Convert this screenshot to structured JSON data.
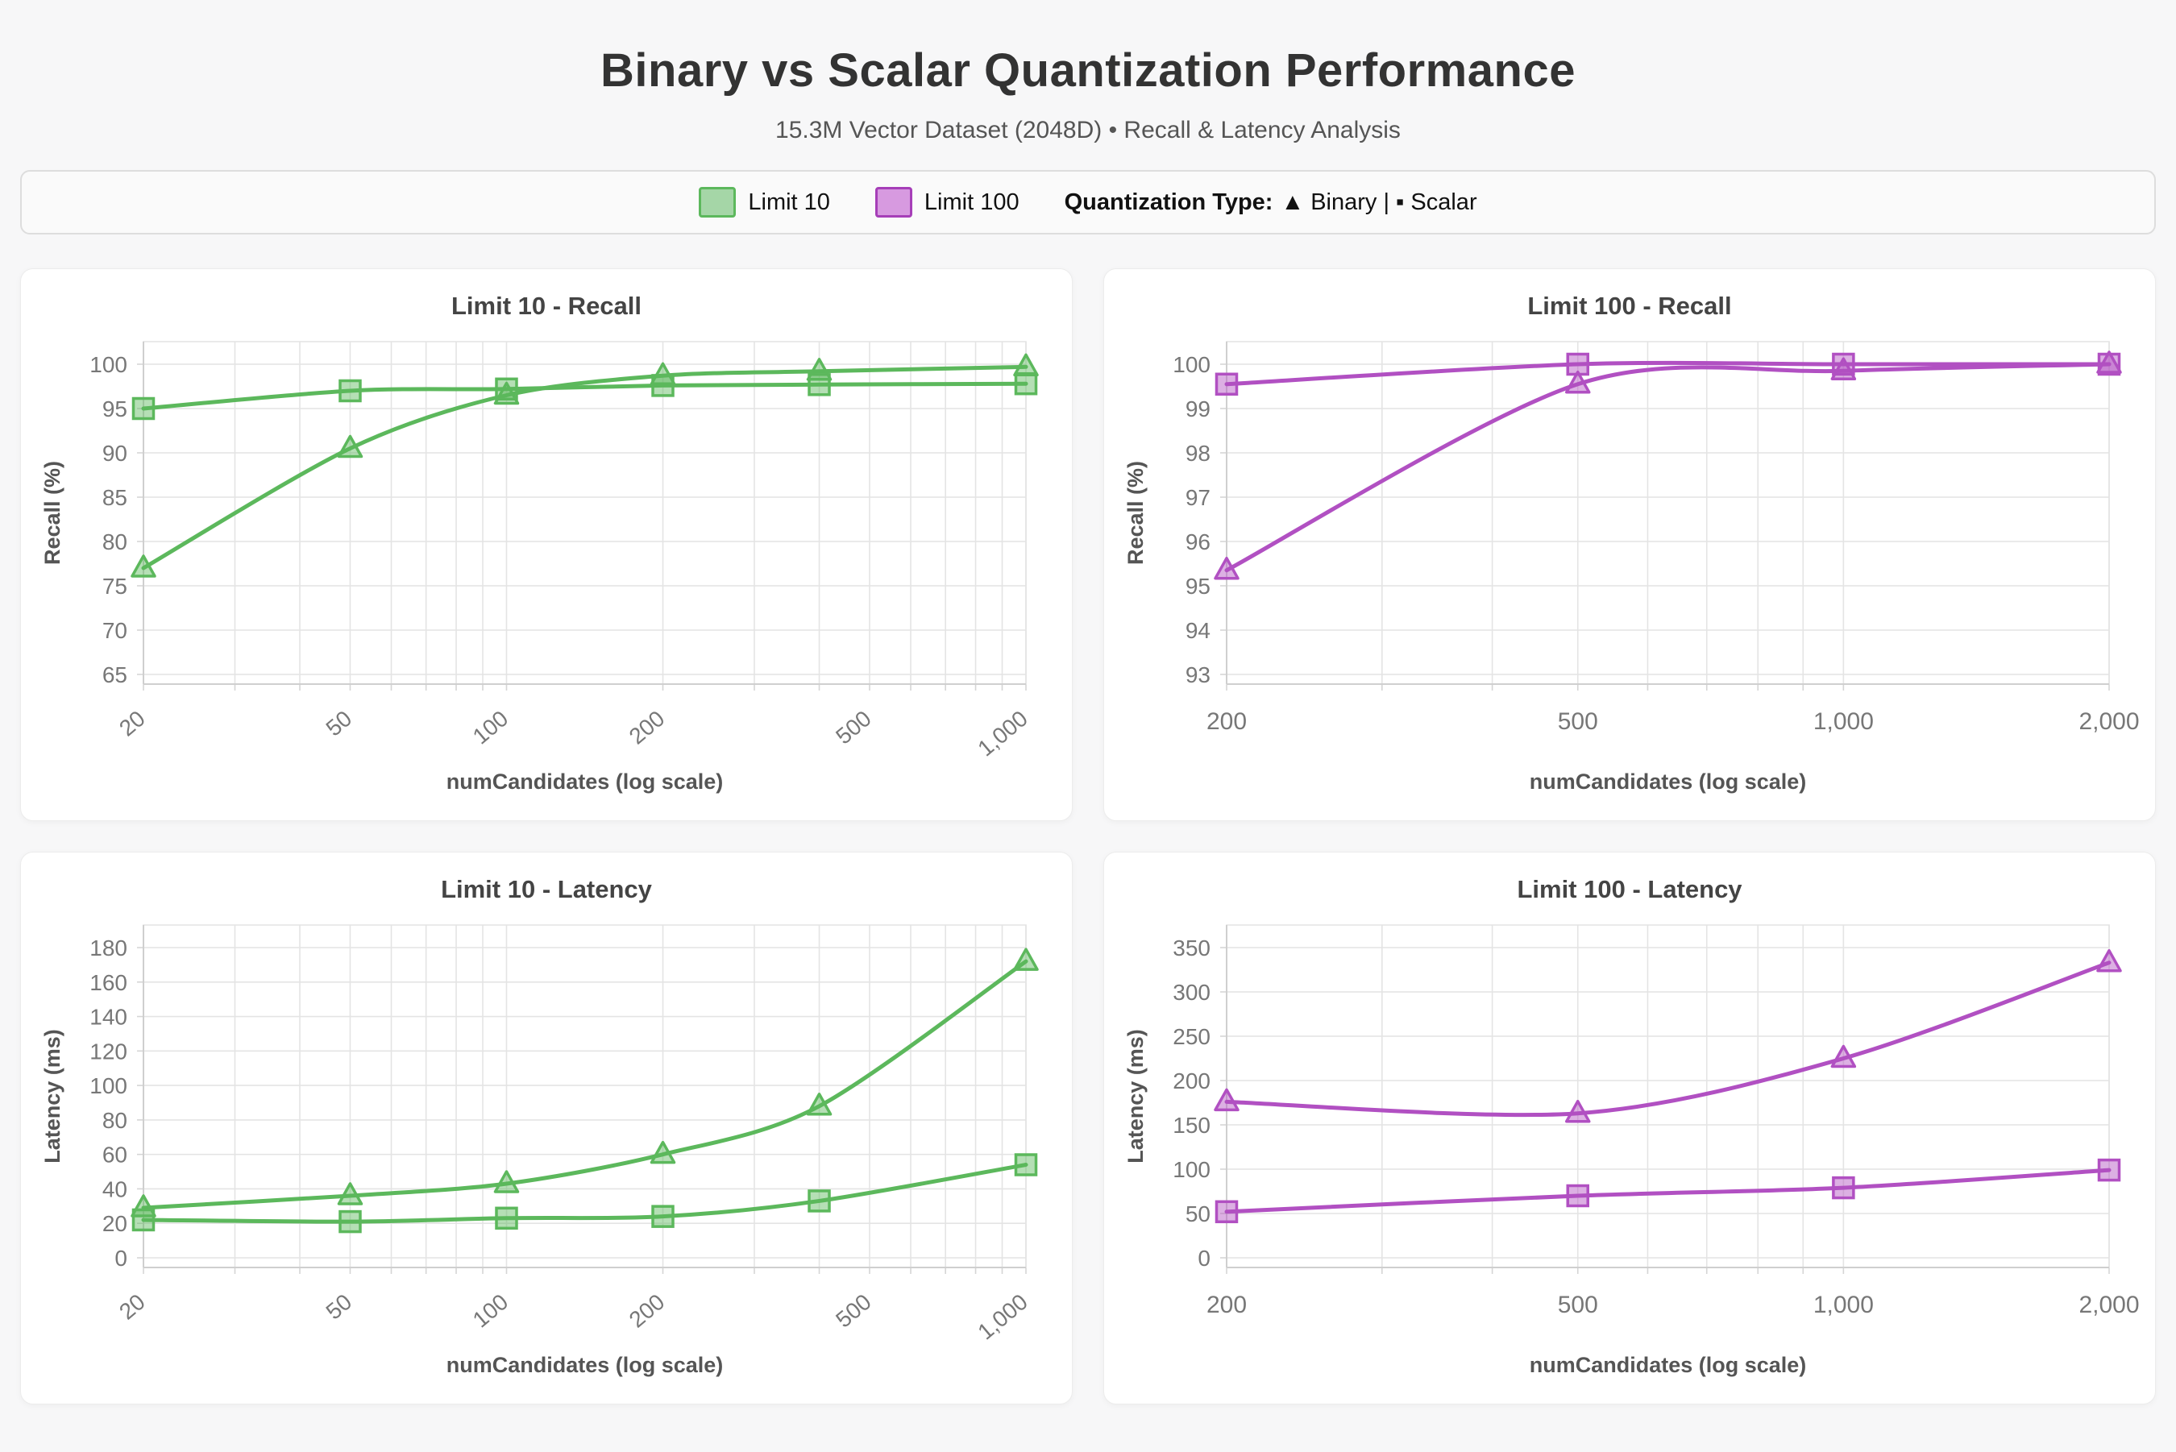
{
  "page": {
    "title": "Binary vs Scalar Quantization Performance",
    "subtitle": "15.3M Vector Dataset (2048D) • Recall & Latency Analysis"
  },
  "legend": {
    "items": [
      {
        "label": "Limit 10",
        "color_key": "green"
      },
      {
        "label": "Limit 100",
        "color_key": "purple"
      }
    ],
    "quant_label": "Quantization Type:",
    "quant_value": "▲ Binary | ▪ Scalar"
  },
  "colors": {
    "green": {
      "line": "#5cb85c",
      "marker_fill": "rgba(92,184,92,0.45)",
      "swatch_fill": "#a5d6a7",
      "swatch_border": "#5cb85c"
    },
    "purple": {
      "line": "#b150c2",
      "marker_fill": "rgba(177,80,194,0.45)",
      "swatch_fill": "#d79ae0",
      "swatch_border": "#a63eb8"
    },
    "grid": "#e4e4e4",
    "axis": "#cfcfcf",
    "tick_mark": "#d5d5d5"
  },
  "chart_data": [
    {
      "type": "line",
      "title": "Limit 10 - Recall",
      "xlabel": "numCandidates (log scale)",
      "ylabel": "Recall (%)",
      "xscale": "log",
      "xlim": [
        20,
        1000
      ],
      "ylim": [
        65,
        100
      ],
      "x": [
        20,
        50,
        100,
        200,
        400,
        1000
      ],
      "xticks": [
        20,
        50,
        100,
        200,
        500,
        1000
      ],
      "xtick_labels": [
        "20",
        "50",
        "100",
        "200",
        "500",
        "1,000"
      ],
      "xgrid": [
        20,
        30,
        40,
        50,
        60,
        70,
        80,
        90,
        100,
        200,
        300,
        400,
        500,
        600,
        700,
        800,
        900,
        1000
      ],
      "yticks": [
        65,
        70,
        75,
        80,
        85,
        90,
        95,
        100
      ],
      "rotate_xticks": true,
      "color_key": "green",
      "series": [
        {
          "name": "Binary",
          "marker": "triangle",
          "values": [
            77,
            90.5,
            96.5,
            98.7,
            99.2,
            99.7
          ]
        },
        {
          "name": "Scalar",
          "marker": "square",
          "values": [
            95,
            97,
            97.2,
            97.6,
            97.7,
            97.8
          ]
        }
      ]
    },
    {
      "type": "line",
      "title": "Limit 100 - Recall",
      "xlabel": "numCandidates (log scale)",
      "ylabel": "Recall (%)",
      "xscale": "log",
      "xlim": [
        200,
        2000
      ],
      "ylim": [
        93,
        100
      ],
      "x": [
        200,
        500,
        1000,
        2000
      ],
      "xticks": [
        200,
        500,
        1000,
        2000
      ],
      "xtick_labels": [
        "200",
        "500",
        "1,000",
        "2,000"
      ],
      "xgrid": [
        200,
        300,
        400,
        500,
        600,
        700,
        800,
        900,
        1000,
        2000
      ],
      "yticks": [
        93,
        94,
        95,
        96,
        97,
        98,
        99,
        100
      ],
      "rotate_xticks": false,
      "color_key": "purple",
      "series": [
        {
          "name": "Binary",
          "marker": "triangle",
          "values": [
            95.35,
            99.55,
            99.85,
            100
          ]
        },
        {
          "name": "Scalar",
          "marker": "square",
          "values": [
            99.55,
            100,
            100,
            100
          ]
        }
      ]
    },
    {
      "type": "line",
      "title": "Limit 10 - Latency",
      "xlabel": "numCandidates (log scale)",
      "ylabel": "Latency (ms)",
      "xscale": "log",
      "xlim": [
        20,
        1000
      ],
      "ylim": [
        0,
        180
      ],
      "x": [
        20,
        50,
        100,
        200,
        400,
        1000
      ],
      "xticks": [
        20,
        50,
        100,
        200,
        500,
        1000
      ],
      "xtick_labels": [
        "20",
        "50",
        "100",
        "200",
        "500",
        "1,000"
      ],
      "xgrid": [
        20,
        30,
        40,
        50,
        60,
        70,
        80,
        90,
        100,
        200,
        300,
        400,
        500,
        600,
        700,
        800,
        900,
        1000
      ],
      "yticks": [
        0,
        20,
        40,
        60,
        80,
        100,
        120,
        140,
        160,
        180
      ],
      "rotate_xticks": true,
      "color_key": "green",
      "series": [
        {
          "name": "Binary",
          "marker": "triangle",
          "values": [
            29,
            36,
            43,
            60,
            88,
            172
          ]
        },
        {
          "name": "Scalar",
          "marker": "square",
          "values": [
            22,
            21,
            23,
            24,
            33,
            54
          ]
        }
      ]
    },
    {
      "type": "line",
      "title": "Limit 100 - Latency",
      "xlabel": "numCandidates (log scale)",
      "ylabel": "Latency (ms)",
      "xscale": "log",
      "xlim": [
        200,
        2000
      ],
      "ylim": [
        0,
        350
      ],
      "x": [
        200,
        500,
        1000,
        2000
      ],
      "xticks": [
        200,
        500,
        1000,
        2000
      ],
      "xtick_labels": [
        "200",
        "500",
        "1,000",
        "2,000"
      ],
      "xgrid": [
        200,
        300,
        400,
        500,
        600,
        700,
        800,
        900,
        1000,
        2000
      ],
      "yticks": [
        0,
        50,
        100,
        150,
        200,
        250,
        300,
        350
      ],
      "rotate_xticks": false,
      "color_key": "purple",
      "series": [
        {
          "name": "Binary",
          "marker": "triangle",
          "values": [
            176,
            163,
            225,
            333
          ]
        },
        {
          "name": "Scalar",
          "marker": "square",
          "values": [
            52,
            70,
            79,
            99
          ]
        }
      ]
    }
  ]
}
